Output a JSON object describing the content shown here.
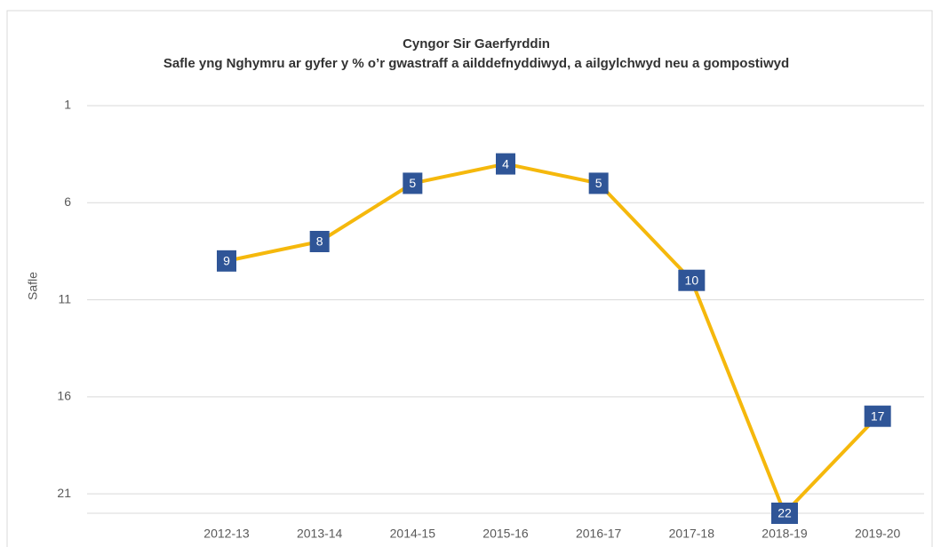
{
  "chart_data": {
    "type": "line",
    "title": "Cyngor Sir Gaerfyrddin",
    "subtitle": "Safle yng Nghymru ar gyfer y % o’r gwastraff a ailddefnyddiwyd, a ailgylchwyd neu a gompostiwyd",
    "y_label": "Safle",
    "categories": [
      null,
      "2012-13",
      "2013-14",
      "2014-15",
      "2015-16",
      "2016-17",
      "2017-18",
      "2018-19",
      "2019-20"
    ],
    "series": [
      {
        "name": "Safle",
        "color": "#f5b80c",
        "values": [
          null,
          9,
          8,
          5,
          4,
          5,
          10,
          22,
          17
        ]
      }
    ],
    "label_color": "#2f5597",
    "ylim": [
      1,
      22
    ],
    "y_inverted": true,
    "yticks": [
      1,
      6,
      11,
      16,
      21
    ],
    "grid": true
  }
}
